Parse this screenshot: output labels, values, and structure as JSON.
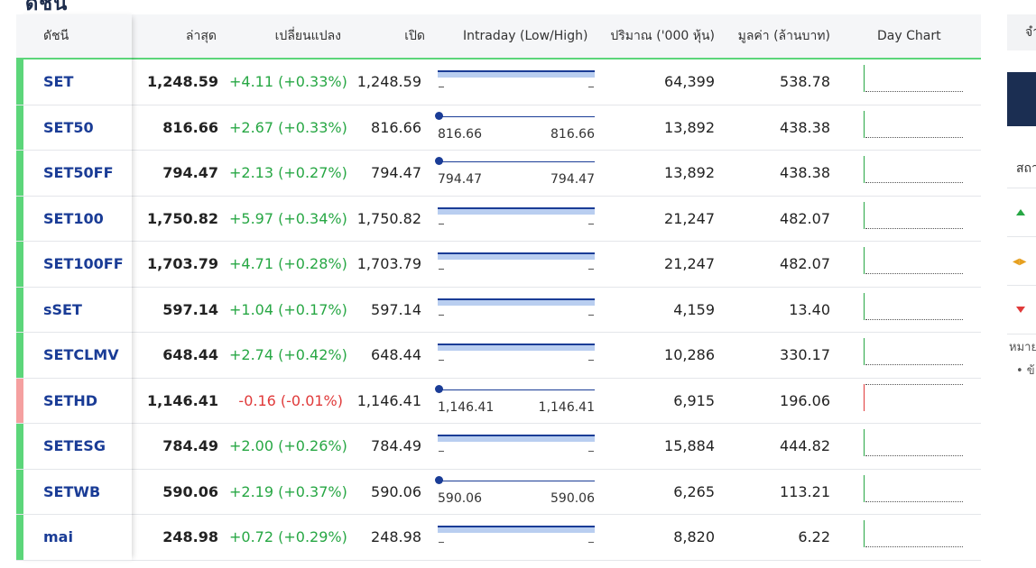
{
  "page": {
    "heading": "ดัชนี"
  },
  "table": {
    "headers": {
      "index": "ดัชนี",
      "last": "ล่าสุด",
      "change": "เปลี่ยนแปลง",
      "open": "เปิด",
      "intraday": "Intraday (Low/High)",
      "volume": "ปริมาณ ('000 หุ้น)",
      "value": "มูลค่า (ล้านบาท)",
      "daychart": "Day Chart"
    },
    "rows": [
      {
        "name": "SET",
        "last": "1,248.59",
        "change": "+4.11 (+0.33%)",
        "open": "1,248.59",
        "low": "_",
        "high": "_",
        "volume": "64,399",
        "value": "538.78",
        "direction": "up",
        "intraday_style": "band"
      },
      {
        "name": "SET50",
        "last": "816.66",
        "change": "+2.67 (+0.33%)",
        "open": "816.66",
        "low": "816.66",
        "high": "816.66",
        "volume": "13,892",
        "value": "438.38",
        "direction": "up",
        "intraday_style": "dot"
      },
      {
        "name": "SET50FF",
        "last": "794.47",
        "change": "+2.13 (+0.27%)",
        "open": "794.47",
        "low": "794.47",
        "high": "794.47",
        "volume": "13,892",
        "value": "438.38",
        "direction": "up",
        "intraday_style": "dot"
      },
      {
        "name": "SET100",
        "last": "1,750.82",
        "change": "+5.97 (+0.34%)",
        "open": "1,750.82",
        "low": "_",
        "high": "_",
        "volume": "21,247",
        "value": "482.07",
        "direction": "up",
        "intraday_style": "band"
      },
      {
        "name": "SET100FF",
        "last": "1,703.79",
        "change": "+4.71 (+0.28%)",
        "open": "1,703.79",
        "low": "_",
        "high": "_",
        "volume": "21,247",
        "value": "482.07",
        "direction": "up",
        "intraday_style": "band"
      },
      {
        "name": "sSET",
        "last": "597.14",
        "change": "+1.04 (+0.17%)",
        "open": "597.14",
        "low": "_",
        "high": "_",
        "volume": "4,159",
        "value": "13.40",
        "direction": "up",
        "intraday_style": "band"
      },
      {
        "name": "SETCLMV",
        "last": "648.44",
        "change": "+2.74 (+0.42%)",
        "open": "648.44",
        "low": "_",
        "high": "_",
        "volume": "10,286",
        "value": "330.17",
        "direction": "up",
        "intraday_style": "band"
      },
      {
        "name": "SETHD",
        "last": "1,146.41",
        "change": "-0.16 (-0.01%)",
        "open": "1,146.41",
        "low": "1,146.41",
        "high": "1,146.41",
        "volume": "6,915",
        "value": "196.06",
        "direction": "down",
        "intraday_style": "dot"
      },
      {
        "name": "SETESG",
        "last": "784.49",
        "change": "+2.00 (+0.26%)",
        "open": "784.49",
        "low": "_",
        "high": "_",
        "volume": "15,884",
        "value": "444.82",
        "direction": "up",
        "intraday_style": "band"
      },
      {
        "name": "SETWB",
        "last": "590.06",
        "change": "+2.19 (+0.37%)",
        "open": "590.06",
        "low": "590.06",
        "high": "590.06",
        "volume": "6,265",
        "value": "113.21",
        "direction": "up",
        "intraday_style": "dot"
      },
      {
        "name": "mai",
        "last": "248.98",
        "change": "+0.72 (+0.29%)",
        "open": "248.98",
        "low": "_",
        "high": "_",
        "volume": "8,820",
        "value": "6.22",
        "direction": "up",
        "intraday_style": "band"
      }
    ]
  },
  "sidebar": {
    "box_text": "จำ",
    "label": "สถา",
    "note": "หมาย",
    "bullet": "• ข้"
  },
  "colors": {
    "up": "#27a744",
    "down": "#e03a3a",
    "up_bar": "#5cd67a",
    "down_bar": "#f5a0a0",
    "navy": "#1a3c96"
  }
}
